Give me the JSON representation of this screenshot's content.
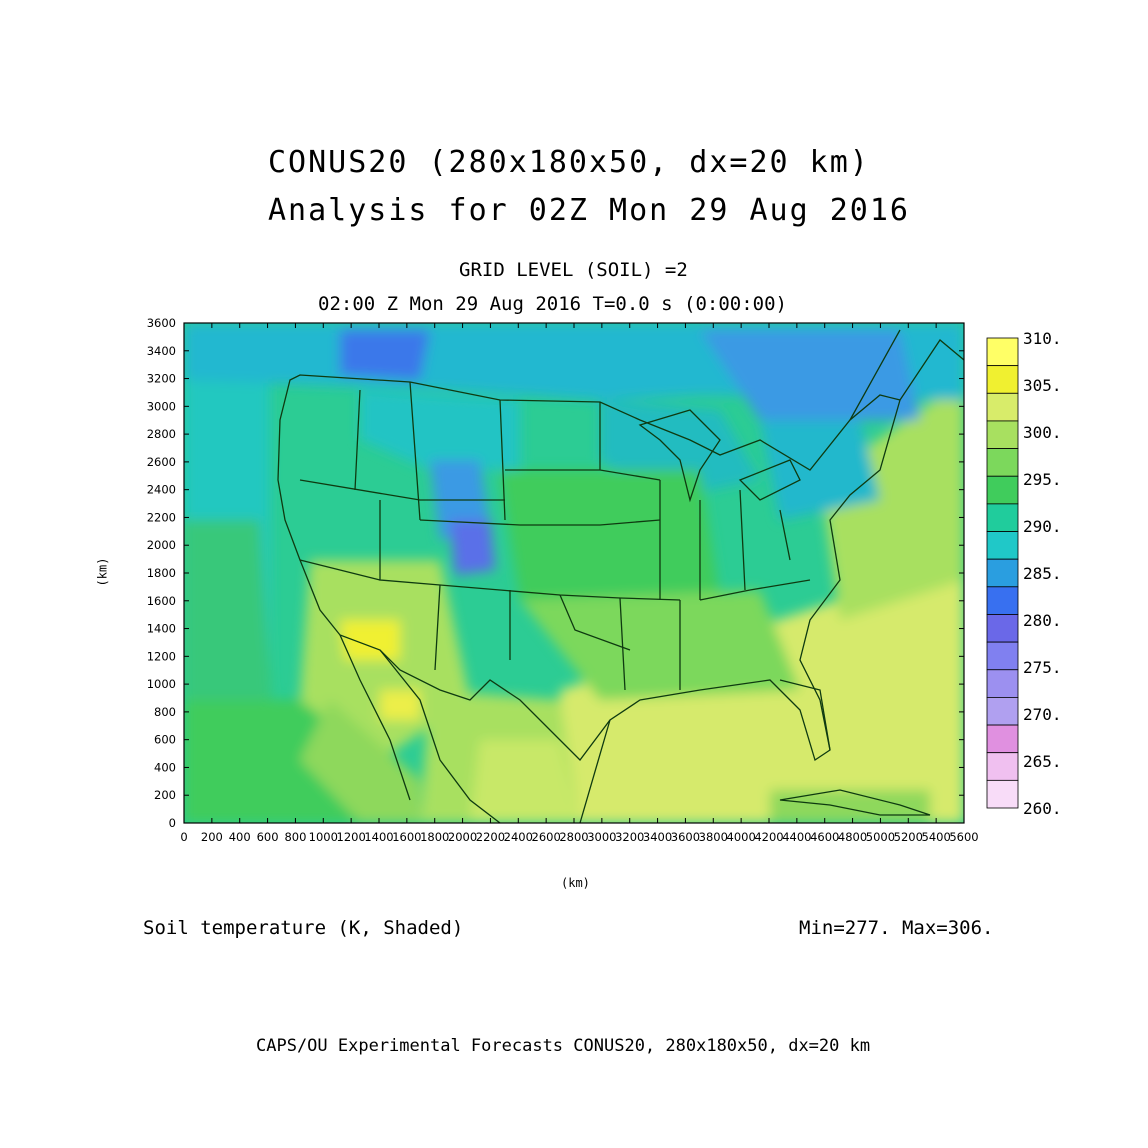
{
  "title_line1": "CONUS20 (280x180x50, dx=20 km)",
  "title_line2": "Analysis for 02Z Mon 29 Aug 2016",
  "subtitle_level": "GRID LEVEL (SOIL) =2",
  "subtitle_time": "02:00 Z Mon 29 Aug 2016    T=0.0 s (0:00:00)",
  "field_label": "Soil temperature (K, Shaded)",
  "minmax_label": "Min=277. Max=306.",
  "footer": "CAPS/OU Experimental Forecasts  CONUS20, 280x180x50, dx=20 km",
  "chart_data": {
    "type": "heatmap",
    "xlabel": "(km)",
    "ylabel": "(km)",
    "xlim": [
      0,
      5600
    ],
    "ylim": [
      0,
      3600
    ],
    "x_ticks": [
      0,
      200,
      400,
      600,
      800,
      1000,
      1200,
      1400,
      1600,
      1800,
      2000,
      2200,
      2400,
      2600,
      2800,
      3000,
      3200,
      3400,
      3600,
      3800,
      4000,
      4200,
      4400,
      4600,
      4800,
      5000,
      5200,
      5400,
      5600
    ],
    "y_ticks": [
      0,
      200,
      400,
      600,
      800,
      1000,
      1200,
      1400,
      1600,
      1800,
      2000,
      2200,
      2400,
      2600,
      2800,
      3000,
      3200,
      3400,
      3600
    ],
    "colorbar": {
      "labels": [
        "310.",
        "305.",
        "300.",
        "295.",
        "290.",
        "285.",
        "280.",
        "275.",
        "270.",
        "265.",
        "260."
      ],
      "colors_top_to_bottom": [
        "#ffff66",
        "#f0f030",
        "#d8ec6a",
        "#a8e060",
        "#7cd85c",
        "#40cc5c",
        "#20cc9c",
        "#20c8c8",
        "#2a9ee0",
        "#3870f0",
        "#6a68e8",
        "#8080f0",
        "#9c90f0",
        "#b0a0f0",
        "#e090e0",
        "#f0c0f0",
        "#f8dcf8"
      ]
    },
    "min": 277,
    "max": 306
  }
}
